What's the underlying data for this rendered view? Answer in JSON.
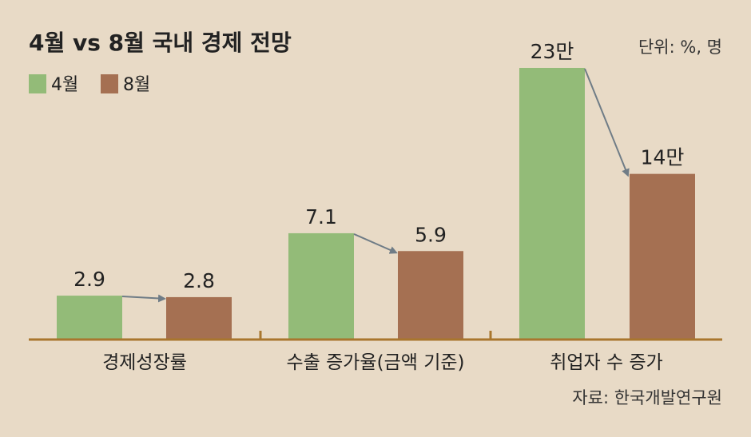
{
  "chart_data": {
    "type": "bar",
    "title": "4월 vs 8월 국내 경제 전망",
    "unit_note": "단위: %, 명",
    "source": "자료: 한국개발연구원",
    "categories": [
      "경제성장률",
      "수출 증가율(금액 기준)",
      "취업자 수 증가"
    ],
    "series": [
      {
        "name": "4월",
        "color": "#93bb78",
        "values": [
          2.9,
          7.1,
          23
        ],
        "labels": [
          "2.9",
          "7.1",
          "23만"
        ]
      },
      {
        "name": "8월",
        "color": "#a57052",
        "values": [
          2.8,
          5.9,
          14
        ],
        "labels": [
          "2.8",
          "5.9",
          "14만"
        ]
      }
    ],
    "arrow_color": "#6f7c86",
    "axis_color": "#a9762e"
  }
}
